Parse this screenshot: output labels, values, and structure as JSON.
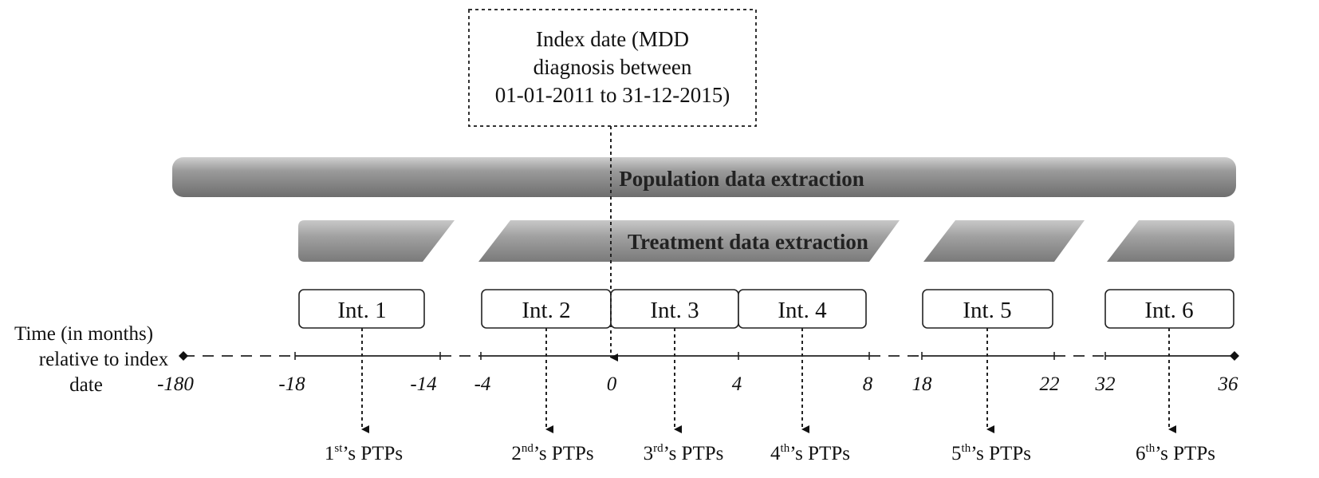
{
  "index_box": {
    "lines": [
      "Index date (MDD",
      "diagnosis between",
      "01-01-2011 to 31-12-2015)"
    ]
  },
  "population_bar": {
    "label": "Population data extraction"
  },
  "treatment_bar": {
    "label": "Treatment data extraction"
  },
  "time_axis": {
    "title_lines": [
      "Time (in months)",
      "relative to index",
      "date"
    ],
    "ticks": [
      "-180",
      "-18",
      "-14",
      "-4",
      "0",
      "4",
      "8",
      "18",
      "22",
      "32",
      "36"
    ]
  },
  "intervals": [
    {
      "label": "Int. 1",
      "ptp_num": "1",
      "ptp_sup": "st",
      "ptp_rest": "’s PTPs"
    },
    {
      "label": "Int. 2",
      "ptp_num": "2",
      "ptp_sup": "nd",
      "ptp_rest": "’s PTPs"
    },
    {
      "label": "Int. 3",
      "ptp_num": "3",
      "ptp_sup": "rd",
      "ptp_rest": "’s PTPs"
    },
    {
      "label": "Int. 4",
      "ptp_num": "4",
      "ptp_sup": "th",
      "ptp_rest": "’s PTPs"
    },
    {
      "label": "Int. 5",
      "ptp_num": "5",
      "ptp_sup": "th",
      "ptp_rest": "’s PTPs"
    },
    {
      "label": "Int. 6",
      "ptp_num": "6",
      "ptp_sup": "th",
      "ptp_rest": "’s PTPs"
    }
  ]
}
